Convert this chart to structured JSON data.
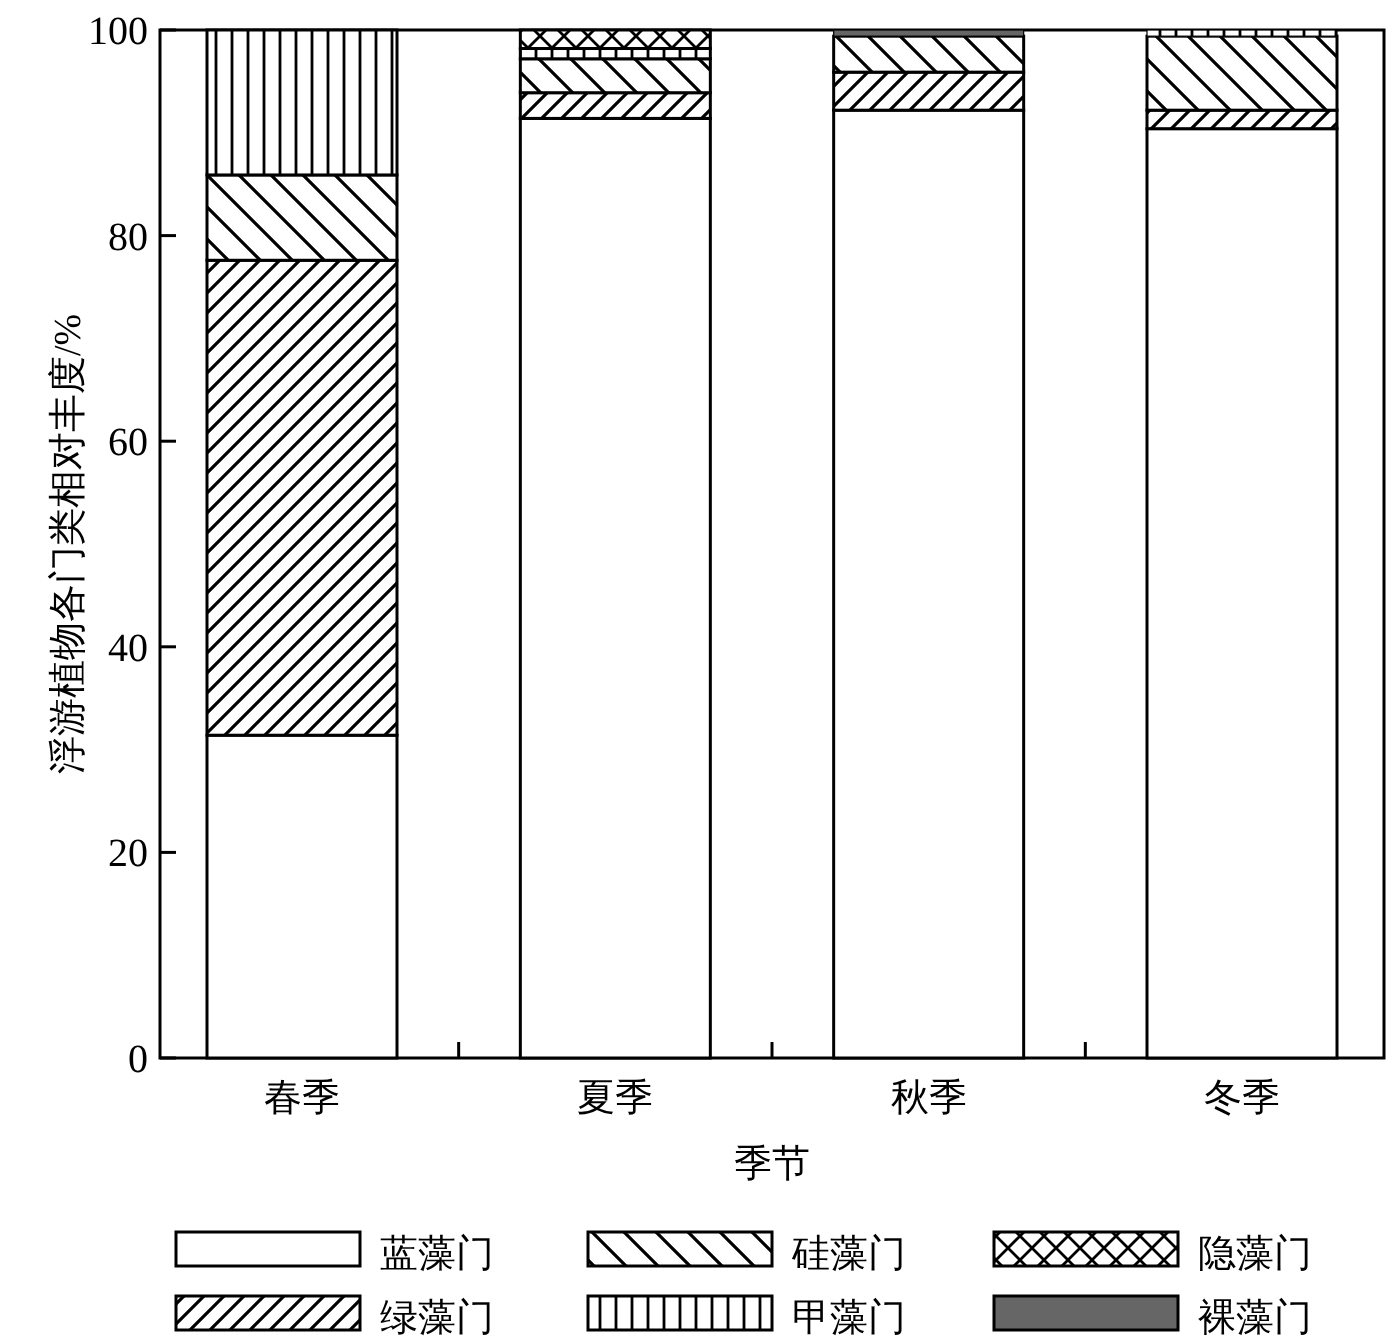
{
  "chart_data": {
    "type": "bar",
    "stacked": true,
    "xlabel": "季节",
    "ylabel": "浮游植物各门类相对丰度/%",
    "categories": [
      "春季",
      "夏季",
      "秋季",
      "冬季"
    ],
    "ylim": [
      0,
      100
    ],
    "yticks": [
      0,
      20,
      40,
      60,
      80,
      100
    ],
    "legend": "bottom",
    "series": [
      {
        "name": "蓝藻门",
        "color": "#ffffff",
        "values": [
          31.4,
          91.4,
          92.2,
          90.4
        ]
      },
      {
        "name": "绿藻门",
        "color": "#ffffff",
        "values": [
          46.2,
          2.5,
          3.7,
          1.8
        ]
      },
      {
        "name": "硅藻门",
        "color": "#ffffff",
        "values": [
          8.3,
          3.3,
          3.5,
          7.2
        ]
      },
      {
        "name": "甲藻门",
        "color": "#ffffff",
        "values": [
          14.1,
          1.0,
          0,
          0.6
        ]
      },
      {
        "name": "隐藻门",
        "color": "#ffffff",
        "values": [
          0,
          1.8,
          0,
          0
        ]
      },
      {
        "name": "裸藻门",
        "color": "#666666",
        "values": [
          0,
          0,
          0.6,
          0
        ]
      }
    ]
  }
}
